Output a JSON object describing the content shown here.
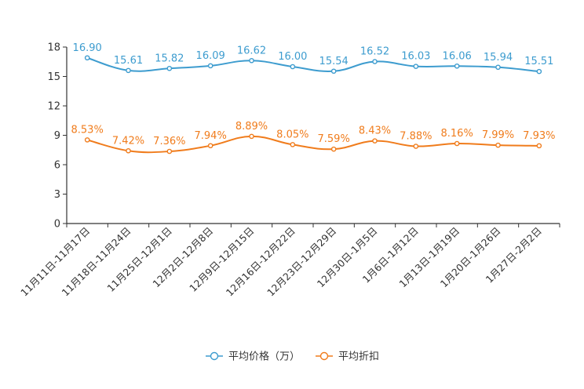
{
  "chart_data": {
    "type": "line",
    "categories": [
      "11月11日-11月17日",
      "11月18日-11月24日",
      "11月25日-12月1日",
      "12月2日-12月8日",
      "12月9日-12月15日",
      "12月16日-12月22日",
      "12月23日-12月29日",
      "12月30日-1月5日",
      "1月6日-1月12日",
      "1月13日-1月19日",
      "1月20日-1月26日",
      "1月27日-2月2日"
    ],
    "series": [
      {
        "name": "平均价格（万）",
        "color": "#3d9ccf",
        "values": [
          16.9,
          15.61,
          15.82,
          16.09,
          16.62,
          16.0,
          15.54,
          16.52,
          16.03,
          16.06,
          15.94,
          15.51
        ],
        "labels": [
          "16.90",
          "15.61",
          "15.82",
          "16.09",
          "16.62",
          "16.00",
          "15.54",
          "16.52",
          "16.03",
          "16.06",
          "15.94",
          "15.51"
        ]
      },
      {
        "name": "平均折扣",
        "color": "#f07c1c",
        "values": [
          8.53,
          7.42,
          7.36,
          7.94,
          8.89,
          8.05,
          7.59,
          8.43,
          7.88,
          8.16,
          7.99,
          7.93
        ],
        "labels": [
          "8.53%",
          "7.42%",
          "7.36%",
          "7.94%",
          "8.89%",
          "8.05%",
          "7.59%",
          "8.43%",
          "7.88%",
          "8.16%",
          "7.99%",
          "7.93%"
        ]
      }
    ],
    "y_ticks": [
      "0",
      "3",
      "6",
      "9",
      "12",
      "15",
      "18"
    ],
    "ylim": [
      0,
      18
    ],
    "title": "",
    "xlabel": "",
    "ylabel": "",
    "legend_position": "bottom-center"
  }
}
